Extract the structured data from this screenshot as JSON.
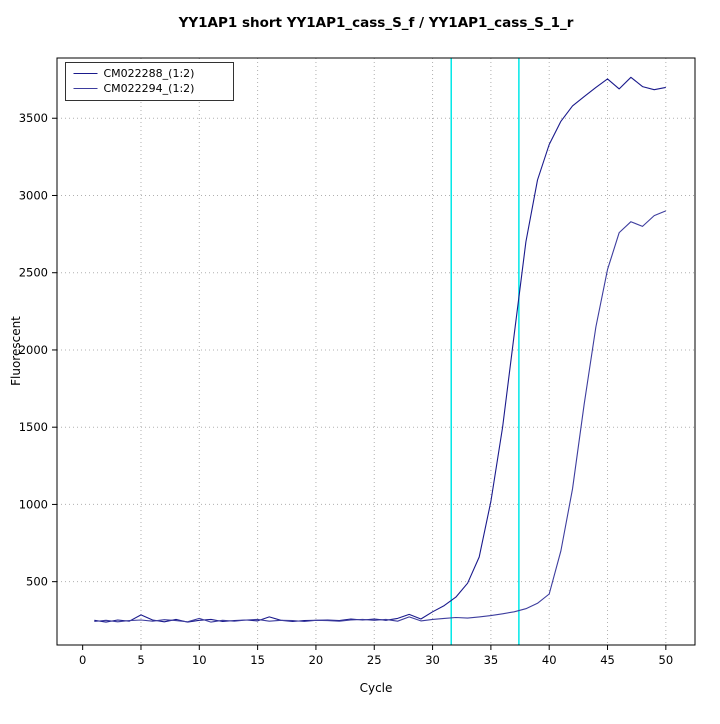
{
  "chart_data": {
    "type": "line",
    "title": "YY1AP1 short YY1AP1_cass_S_f / YY1AP1_cass_S_1_r",
    "xlabel": "Cycle",
    "ylabel": "Fluorescent",
    "xlim": [
      -2.2,
      52.5
    ],
    "ylim": [
      90,
      3890
    ],
    "x_ticks": [
      0,
      5,
      10,
      15,
      20,
      25,
      30,
      35,
      40,
      45,
      50
    ],
    "y_ticks": [
      500,
      1000,
      1500,
      2000,
      2500,
      3000,
      3500
    ],
    "grid": "dotted",
    "grid_color": "#b0b0b0",
    "legend_position": "top-left",
    "vlines": [
      {
        "x": 31.6,
        "color": "#00E8E8"
      },
      {
        "x": 37.4,
        "color": "#00E8E8"
      }
    ],
    "series": [
      {
        "name": "CM022288_(1:2)",
        "color": "#1a1a8c",
        "x_start": 1,
        "values": [
          250,
          238,
          252,
          244,
          285,
          252,
          240,
          256,
          238,
          250,
          256,
          242,
          248,
          252,
          246,
          272,
          250,
          242,
          248,
          250,
          252,
          248,
          258,
          252,
          258,
          250,
          262,
          288,
          258,
          305,
          345,
          400,
          490,
          660,
          1020,
          1500,
          2100,
          2700,
          3100,
          3330,
          3480,
          3580,
          3640,
          3700,
          3755,
          3690,
          3765,
          3705,
          3685,
          3700
        ]
      },
      {
        "name": "CM022294_(1:2)",
        "color": "#3d3d9e",
        "x_start": 1,
        "values": [
          242,
          250,
          240,
          248,
          252,
          244,
          254,
          248,
          240,
          262,
          238,
          250,
          244,
          252,
          256,
          244,
          250,
          248,
          242,
          250,
          248,
          244,
          252,
          256,
          250,
          256,
          244,
          272,
          246,
          256,
          262,
          268,
          264,
          272,
          280,
          292,
          305,
          325,
          360,
          420,
          700,
          1100,
          1650,
          2150,
          2520,
          2760,
          2830,
          2800,
          2870,
          2900
        ]
      }
    ]
  }
}
